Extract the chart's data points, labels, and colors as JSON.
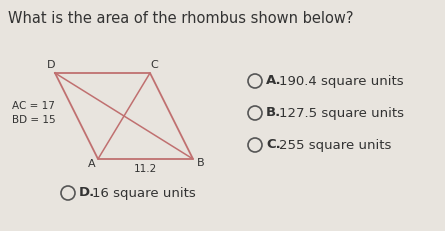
{
  "title": "What is the area of the rhombus shown below?",
  "title_fontsize": 10.5,
  "background_color": "#e8e4de",
  "rhombus_color": "#c07070",
  "diagonal_color": "#c07070",
  "text_color": "#333333",
  "label_fontsize": 8.0,
  "choice_fontsize": 9.5,
  "circle_color": "#555555",
  "choices": [
    {
      "letter": "A.",
      "text": " 190.4 square units"
    },
    {
      "letter": "B.",
      "text": " 127.5 square units"
    },
    {
      "letter": "C.",
      "text": " 255 square units"
    },
    {
      "letter": "D.",
      "text": " 16 square units"
    }
  ]
}
